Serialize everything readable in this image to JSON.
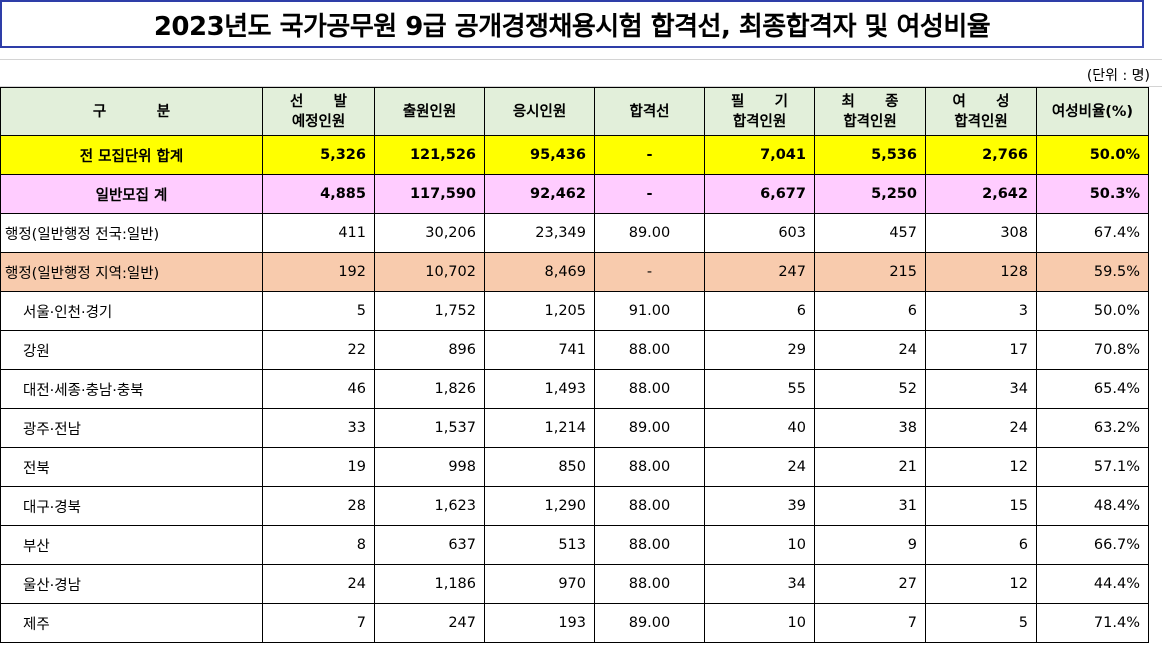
{
  "title": "2023년도 국가공무원 9급 공개경쟁채용시험 합격선, 최종합격자 및 여성비율",
  "unit": "(단위 : 명)",
  "headers": [
    {
      "line1": "구          분",
      "line2": ""
    },
    {
      "line1": "선      발",
      "line2": "예정인원"
    },
    {
      "line1": "출원인원",
      "line2": ""
    },
    {
      "line1": "응시인원",
      "line2": ""
    },
    {
      "line1": "합격선",
      "line2": ""
    },
    {
      "line1": "필      기",
      "line2": "합격인원"
    },
    {
      "line1": "최      종",
      "line2": "합격인원"
    },
    {
      "line1": "여      성",
      "line2": "합격인원"
    },
    {
      "line1": "여성비율(%)",
      "line2": ""
    }
  ],
  "rows": [
    {
      "type": "total",
      "cells": [
        "전 모집단위 합계",
        "5,326",
        "121,526",
        "95,436",
        "-",
        "7,041",
        "5,536",
        "2,766",
        "50.0%"
      ]
    },
    {
      "type": "general",
      "cells": [
        "일반모집 계",
        "4,885",
        "117,590",
        "92,462",
        "-",
        "6,677",
        "5,250",
        "2,642",
        "50.3%"
      ]
    },
    {
      "type": "plain",
      "cells": [
        "행정(일반행정 전국:일반)",
        "411",
        "30,206",
        "23,349",
        "89.00",
        "603",
        "457",
        "308",
        "67.4%"
      ]
    },
    {
      "type": "regional",
      "cells": [
        "행정(일반행정 지역:일반)",
        "192",
        "10,702",
        "8,469",
        "-",
        "247",
        "215",
        "128",
        "59.5%"
      ]
    },
    {
      "type": "sub",
      "cells": [
        "서울·인천·경기",
        "5",
        "1,752",
        "1,205",
        "91.00",
        "6",
        "6",
        "3",
        "50.0%"
      ]
    },
    {
      "type": "sub",
      "cells": [
        "강원",
        "22",
        "896",
        "741",
        "88.00",
        "29",
        "24",
        "17",
        "70.8%"
      ]
    },
    {
      "type": "sub",
      "cells": [
        "대전·세종·충남·충북",
        "46",
        "1,826",
        "1,493",
        "88.00",
        "55",
        "52",
        "34",
        "65.4%"
      ]
    },
    {
      "type": "sub",
      "cells": [
        "광주·전남",
        "33",
        "1,537",
        "1,214",
        "89.00",
        "40",
        "38",
        "24",
        "63.2%"
      ]
    },
    {
      "type": "sub",
      "cells": [
        "전북",
        "19",
        "998",
        "850",
        "88.00",
        "24",
        "21",
        "12",
        "57.1%"
      ]
    },
    {
      "type": "sub",
      "cells": [
        "대구·경북",
        "28",
        "1,623",
        "1,290",
        "88.00",
        "39",
        "31",
        "15",
        "48.4%"
      ]
    },
    {
      "type": "sub",
      "cells": [
        "부산",
        "8",
        "637",
        "513",
        "88.00",
        "10",
        "9",
        "6",
        "66.7%"
      ]
    },
    {
      "type": "sub",
      "cells": [
        "울산·경남",
        "24",
        "1,186",
        "970",
        "88.00",
        "34",
        "27",
        "12",
        "44.4%"
      ]
    },
    {
      "type": "sub",
      "cells": [
        "제주",
        "7",
        "247",
        "193",
        "89.00",
        "10",
        "7",
        "5",
        "71.4%"
      ]
    }
  ]
}
